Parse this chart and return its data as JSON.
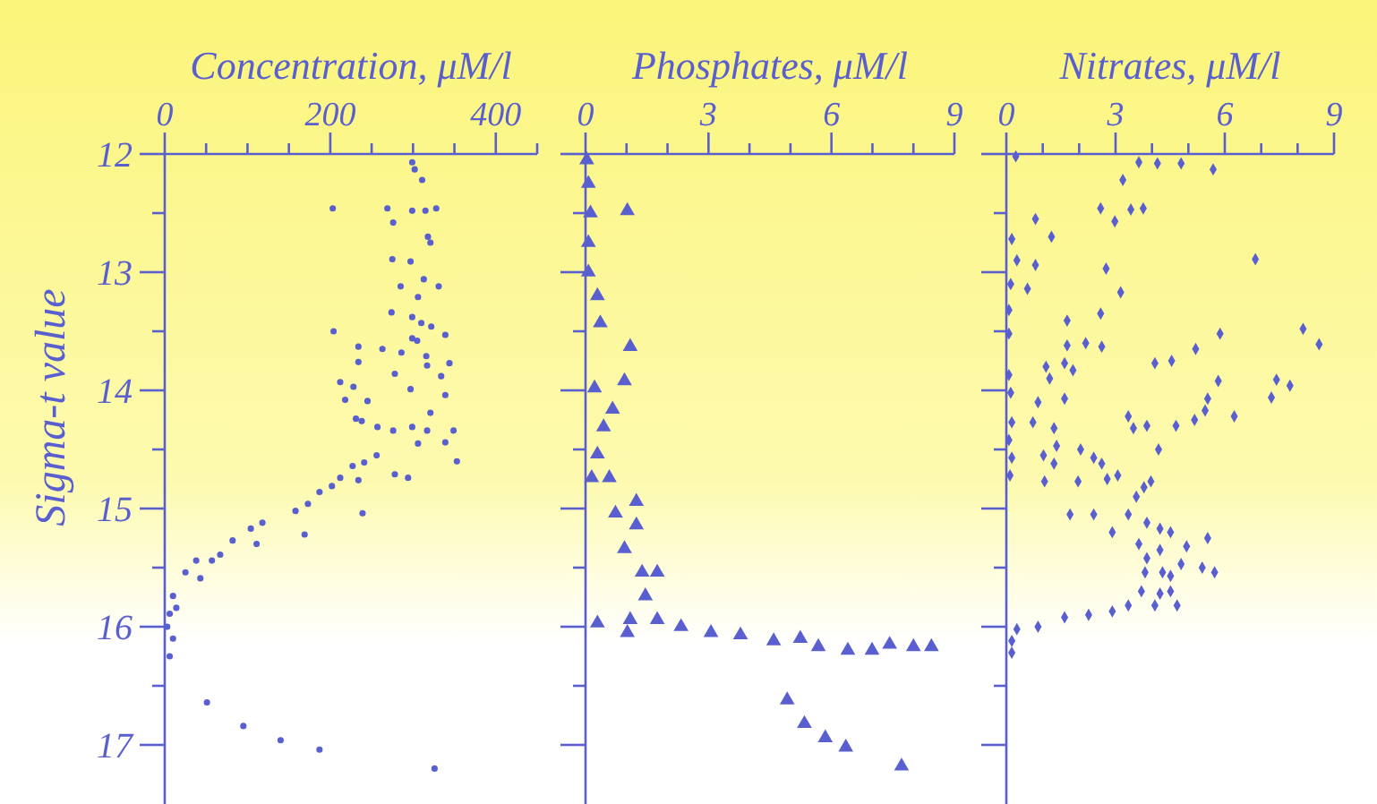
{
  "chart_data": [
    {
      "type": "scatter",
      "xlabel": "Concentration, μM/l",
      "ylabel": "Sigma-t value",
      "xlim": [
        0,
        450
      ],
      "ylim": [
        17.5,
        12
      ],
      "xticks": [
        0,
        {
          "value": 50,
          "label": null
        },
        {
          "value": 100,
          "label": null
        },
        {
          "value": 150,
          "label": null
        },
        200,
        {
          "value": 250,
          "label": null
        },
        {
          "value": 300,
          "label": null
        },
        {
          "value": 350,
          "label": null
        },
        400,
        {
          "value": 450,
          "label": null
        }
      ],
      "yticks": [
        12,
        {
          "value": 12.5,
          "label": null
        },
        13,
        {
          "value": 13.5,
          "label": null
        },
        14,
        {
          "value": 14.5,
          "label": null
        },
        15,
        {
          "value": 15.5,
          "label": null
        },
        16,
        {
          "value": 16.5,
          "label": null
        },
        17
      ],
      "marker": "circle",
      "grid": false,
      "series": [
        {
          "color": "#5a5fd0",
          "x": [
            299,
            302,
            311,
            203,
            269,
            299,
            315,
            328,
            276,
            318,
            321,
            275,
            297,
            285,
            313,
            331,
            306,
            274,
            299,
            310,
            322,
            204,
            305,
            299,
            339,
            234,
            263,
            286,
            316,
            344,
            234,
            278,
            317,
            334,
            212,
            228,
            297,
            339,
            218,
            245,
            321,
            231,
            238,
            257,
            276,
            299,
            317,
            349,
            339,
            306,
            353,
            256,
            241,
            227,
            278,
            294,
            234,
            212,
            202,
            187,
            239,
            173,
            158,
            169,
            118,
            104,
            111,
            82,
            67,
            57,
            38,
            25,
            43,
            10,
            6,
            3,
            10,
            6,
            14,
            51,
            95,
            140,
            187,
            326
          ],
          "values": [
            12.07,
            12.13,
            12.22,
            12.46,
            12.46,
            12.48,
            12.48,
            12.46,
            12.58,
            12.7,
            12.75,
            12.89,
            12.91,
            13.12,
            13.06,
            13.12,
            13.21,
            13.34,
            13.38,
            13.43,
            13.46,
            13.5,
            13.58,
            13.56,
            13.53,
            13.63,
            13.65,
            13.68,
            13.71,
            13.77,
            13.76,
            13.86,
            13.79,
            13.88,
            13.93,
            13.97,
            13.99,
            14.04,
            14.08,
            14.09,
            14.19,
            14.24,
            14.26,
            14.31,
            14.34,
            14.31,
            14.34,
            14.34,
            14.44,
            14.45,
            14.6,
            14.55,
            14.61,
            14.64,
            14.71,
            14.74,
            14.76,
            14.74,
            14.81,
            14.86,
            15.04,
            14.96,
            15.02,
            15.22,
            15.12,
            15.17,
            15.3,
            15.27,
            15.39,
            15.44,
            15.44,
            15.54,
            15.59,
            15.74,
            15.89,
            16.0,
            16.1,
            16.25,
            15.84,
            16.64,
            16.84,
            16.96,
            17.04,
            17.2
          ]
        }
      ]
    },
    {
      "type": "scatter",
      "xlabel": "Phosphates, μM/l",
      "xlim": [
        0,
        9
      ],
      "ylim": [
        17.5,
        12
      ],
      "tick_labels": "x",
      "xticks": [
        0,
        {
          "value": 1,
          "label": null
        },
        {
          "value": 2,
          "label": null
        },
        3,
        {
          "value": 4,
          "label": null
        },
        {
          "value": 5,
          "label": null
        },
        6,
        {
          "value": 7,
          "label": null
        },
        {
          "value": 8,
          "label": null
        },
        9
      ],
      "yticks": [
        12,
        {
          "value": 12.5,
          "label": null
        },
        13,
        {
          "value": 13.5,
          "label": null
        },
        14,
        {
          "value": 14.5,
          "label": null
        },
        15,
        {
          "value": 15.5,
          "label": null
        },
        16,
        {
          "value": 16.5,
          "label": null
        },
        17
      ],
      "marker": "triangle",
      "grid": false,
      "series": [
        {
          "color": "#5a5fd0",
          "x": [
            0.03,
            0.07,
            0.12,
            0.07,
            1.02,
            0.07,
            0.29,
            0.36,
            1.09,
            0.95,
            0.66,
            0.22,
            0.44,
            0.29,
            0.15,
            0.58,
            1.24,
            0.73,
            1.24,
            0.95,
            1.38,
            1.75,
            1.46,
            1.75,
            1.09,
            0.29,
            1.02,
            2.33,
            3.06,
            3.78,
            4.59,
            5.24,
            5.68,
            6.4,
            6.99,
            7.42,
            8.0,
            8.44,
            4.92,
            5.34,
            5.85,
            6.35,
            7.71
          ],
          "values": [
            12.05,
            12.25,
            12.5,
            12.75,
            12.48,
            13.0,
            13.2,
            13.43,
            13.63,
            13.92,
            14.16,
            13.98,
            14.31,
            14.54,
            14.74,
            14.74,
            14.94,
            15.04,
            15.14,
            15.34,
            15.54,
            15.54,
            15.74,
            15.94,
            15.94,
            15.97,
            16.05,
            16.0,
            16.05,
            16.07,
            16.12,
            16.1,
            16.17,
            16.2,
            16.2,
            16.15,
            16.17,
            16.17,
            16.62,
            16.82,
            16.94,
            17.02,
            17.18
          ]
        }
      ]
    },
    {
      "type": "scatter",
      "xlabel": "Nitrates, μM/l",
      "xlim": [
        0,
        9
      ],
      "ylim": [
        17.5,
        12
      ],
      "tick_labels": "x",
      "xticks": [
        0,
        {
          "value": 1,
          "label": null
        },
        {
          "value": 2,
          "label": null
        },
        3,
        {
          "value": 4,
          "label": null
        },
        {
          "value": 5,
          "label": null
        },
        6,
        {
          "value": 7,
          "label": null
        },
        {
          "value": 8,
          "label": null
        },
        9
      ],
      "yticks": [
        12,
        {
          "value": 12.5,
          "label": null
        },
        13,
        {
          "value": 13.5,
          "label": null
        },
        14,
        {
          "value": 14.5,
          "label": null
        },
        15,
        {
          "value": 15.5,
          "label": null
        },
        16,
        {
          "value": 16.5,
          "label": null
        },
        17
      ],
      "marker": "diamond",
      "grid": false,
      "series": [
        {
          "color": "#5a5fd0",
          "x": [
            0.26,
            3.2,
            3.64,
            4.15,
            4.8,
            5.68,
            2.59,
            2.98,
            3.42,
            3.76,
            0.8,
            0.15,
            1.24,
            0.29,
            0.8,
            2.74,
            6.84,
            0.12,
            0.58,
            3.14,
            0.07,
            2.59,
            1.67,
            0.07,
            2.18,
            2.62,
            1.67,
            5.87,
            8.15,
            8.59,
            5.2,
            4.08,
            4.54,
            1.09,
            1.6,
            1.19,
            1.83,
            0.07,
            0.12,
            0.87,
            1.6,
            5.82,
            7.42,
            7.79,
            7.28,
            5.53,
            5.46,
            5.17,
            6.26,
            3.35,
            3.49,
            3.86,
            4.66,
            0.15,
            0.07,
            0.73,
            1.31,
            1.38,
            0.15,
            1.02,
            1.31,
            2.04,
            2.4,
            2.62,
            4.18,
            0.1,
            1.05,
            1.97,
            2.77,
            3.06,
            3.78,
            3.97,
            1.75,
            2.4,
            2.91,
            3.57,
            3.35,
            3.86,
            4.22,
            4.51,
            3.64,
            4.22,
            4.95,
            5.53,
            3.86,
            4.8,
            5.38,
            5.72,
            3.81,
            4.29,
            4.51,
            3.71,
            4.22,
            4.51,
            4.69,
            4.08,
            3.35,
            2.91,
            2.26,
            1.6,
            0.87,
            0.29,
            0.15,
            0.15
          ],
          "values": [
            12.02,
            12.22,
            12.07,
            12.08,
            12.08,
            12.13,
            12.46,
            12.57,
            12.47,
            12.46,
            12.55,
            12.72,
            12.7,
            12.9,
            12.94,
            12.97,
            12.89,
            13.1,
            13.14,
            13.17,
            13.32,
            13.35,
            13.41,
            13.52,
            13.6,
            13.63,
            13.62,
            13.52,
            13.48,
            13.61,
            13.65,
            13.77,
            13.75,
            13.8,
            13.77,
            13.9,
            13.83,
            13.87,
            14.02,
            14.1,
            14.07,
            13.92,
            13.91,
            13.96,
            14.06,
            14.07,
            14.17,
            14.25,
            14.22,
            14.22,
            14.32,
            14.3,
            14.3,
            14.27,
            14.42,
            14.27,
            14.32,
            14.47,
            14.57,
            14.55,
            14.62,
            14.5,
            14.57,
            14.62,
            14.5,
            14.72,
            14.77,
            14.77,
            14.75,
            14.72,
            14.82,
            14.77,
            15.05,
            15.05,
            15.2,
            14.9,
            15.05,
            15.12,
            15.17,
            15.2,
            15.3,
            15.35,
            15.32,
            15.25,
            15.42,
            15.47,
            15.5,
            15.54,
            15.54,
            15.54,
            15.57,
            15.7,
            15.72,
            15.7,
            15.82,
            15.82,
            15.82,
            15.87,
            15.9,
            15.92,
            16.0,
            16.02,
            16.12,
            16.22
          ]
        }
      ]
    }
  ]
}
